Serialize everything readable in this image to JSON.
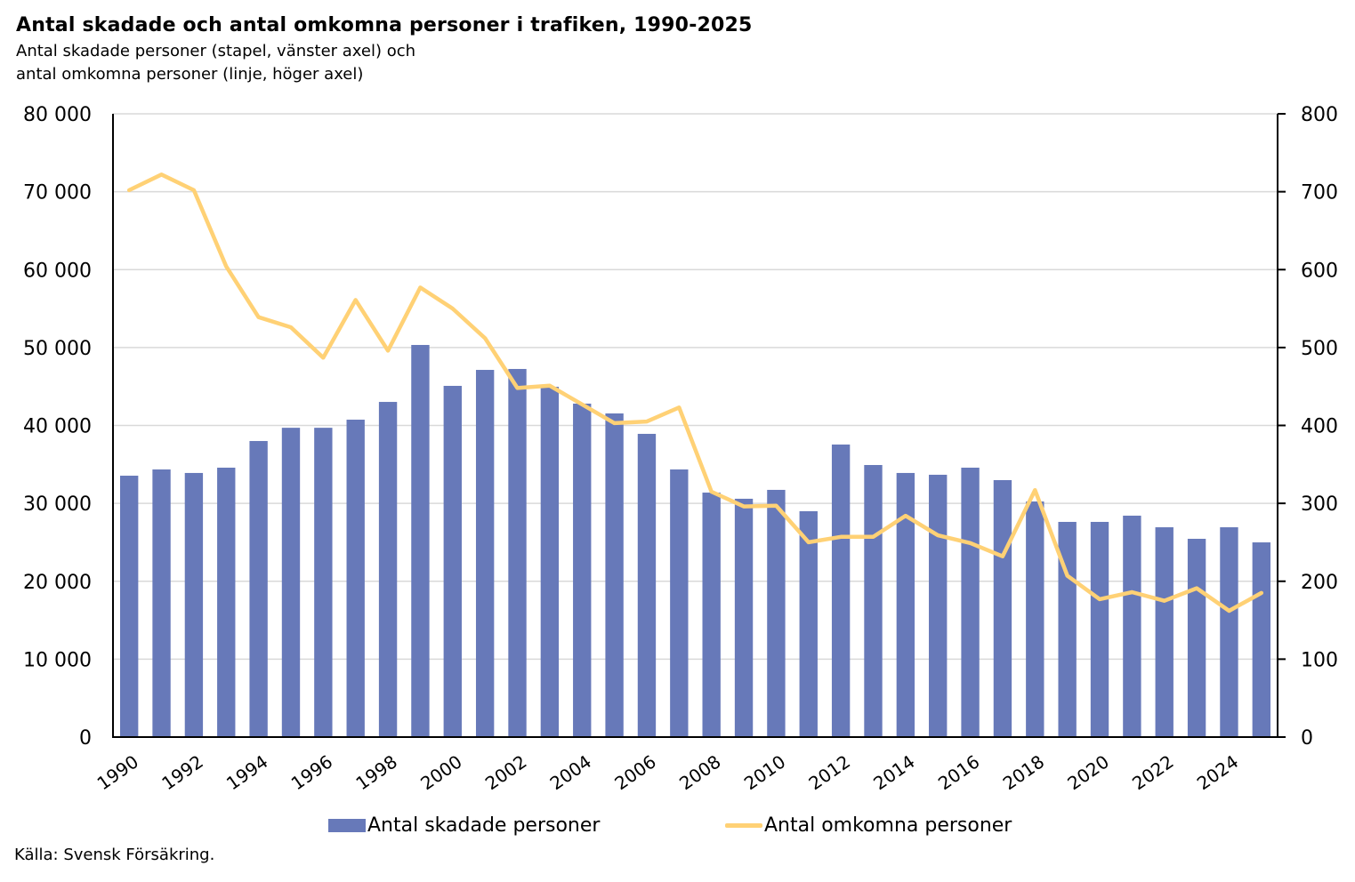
{
  "header": {
    "title": "Antal skadade och antal omkomna personer i trafiken, 1990-2025",
    "subtitle_line1": "Antal skadade personer (stapel, vänster axel) och",
    "subtitle_line2": "antal omkomna personer (linje, höger axel)"
  },
  "footer": {
    "source": "Källa: Svensk Försäkring."
  },
  "colors": {
    "bars": "#6779B9",
    "line": "#FFD175",
    "grid": "#D9D9D9",
    "axis": "#000000"
  },
  "chart_data": {
    "type": "bar+line",
    "title": "Antal skadade och antal omkomna personer i trafiken, 1990-2025",
    "subtitle": "Antal skadade personer (stapel, vänster axel) och antal omkomna personer (linje, höger axel)",
    "xlabel": "",
    "categories": [
      "1990",
      "1991",
      "1992",
      "1993",
      "1994",
      "1995",
      "1996",
      "1997",
      "1998",
      "1999",
      "2000",
      "2001",
      "2002",
      "2003",
      "2004",
      "2005",
      "2006",
      "2007",
      "2008",
      "2009",
      "2010",
      "2011",
      "2012",
      "2013",
      "2014",
      "2015",
      "2016",
      "2017",
      "2018",
      "2019",
      "2020",
      "2021",
      "2022",
      "2023",
      "2024",
      "2025"
    ],
    "x_tick_labels": [
      "1990",
      "1992",
      "1994",
      "1996",
      "1998",
      "2000",
      "2002",
      "2004",
      "2006",
      "2008",
      "2010",
      "2012",
      "2014",
      "2016",
      "2018",
      "2020",
      "2022",
      "2024"
    ],
    "series": [
      {
        "name": "Antal skadade personer",
        "type": "bar",
        "axis": "left",
        "values": [
          33550,
          34350,
          33900,
          34580,
          38000,
          39700,
          39700,
          40740,
          43020,
          50330,
          45080,
          47130,
          47250,
          44960,
          42800,
          41540,
          38920,
          34350,
          31380,
          30590,
          31730,
          28990,
          37550,
          34920,
          33900,
          33670,
          34580,
          32980,
          30240,
          27620,
          27620,
          28420,
          26930,
          25450,
          26930,
          24990
        ]
      },
      {
        "name": "Antal omkomna personer",
        "type": "line",
        "axis": "right",
        "values": [
          702,
          722,
          702,
          604,
          539,
          526,
          487,
          561,
          496,
          577,
          550,
          512,
          448,
          451,
          427,
          403,
          405,
          423,
          315,
          296,
          297,
          250,
          257,
          257,
          284,
          259,
          249,
          232,
          317,
          207,
          177,
          186,
          175,
          191,
          162,
          185
        ]
      }
    ],
    "left_axis": {
      "ylim": [
        0,
        80000
      ],
      "ticks": [
        0,
        10000,
        20000,
        30000,
        40000,
        50000,
        60000,
        70000,
        80000
      ],
      "tick_labels": [
        "0",
        "10 000",
        "20 000",
        "30 000",
        "40 000",
        "50 000",
        "60 000",
        "70 000",
        "80 000"
      ]
    },
    "right_axis": {
      "ylim": [
        0,
        800
      ],
      "ticks": [
        0,
        100,
        200,
        300,
        400,
        500,
        600,
        700,
        800
      ],
      "tick_labels": [
        "0",
        "100",
        "200",
        "300",
        "400",
        "500",
        "600",
        "700",
        "800"
      ]
    },
    "grid": true,
    "legend": {
      "placement": "bottom-center",
      "entries": [
        "Antal skadade personer",
        "Antal omkomna personer"
      ]
    }
  }
}
